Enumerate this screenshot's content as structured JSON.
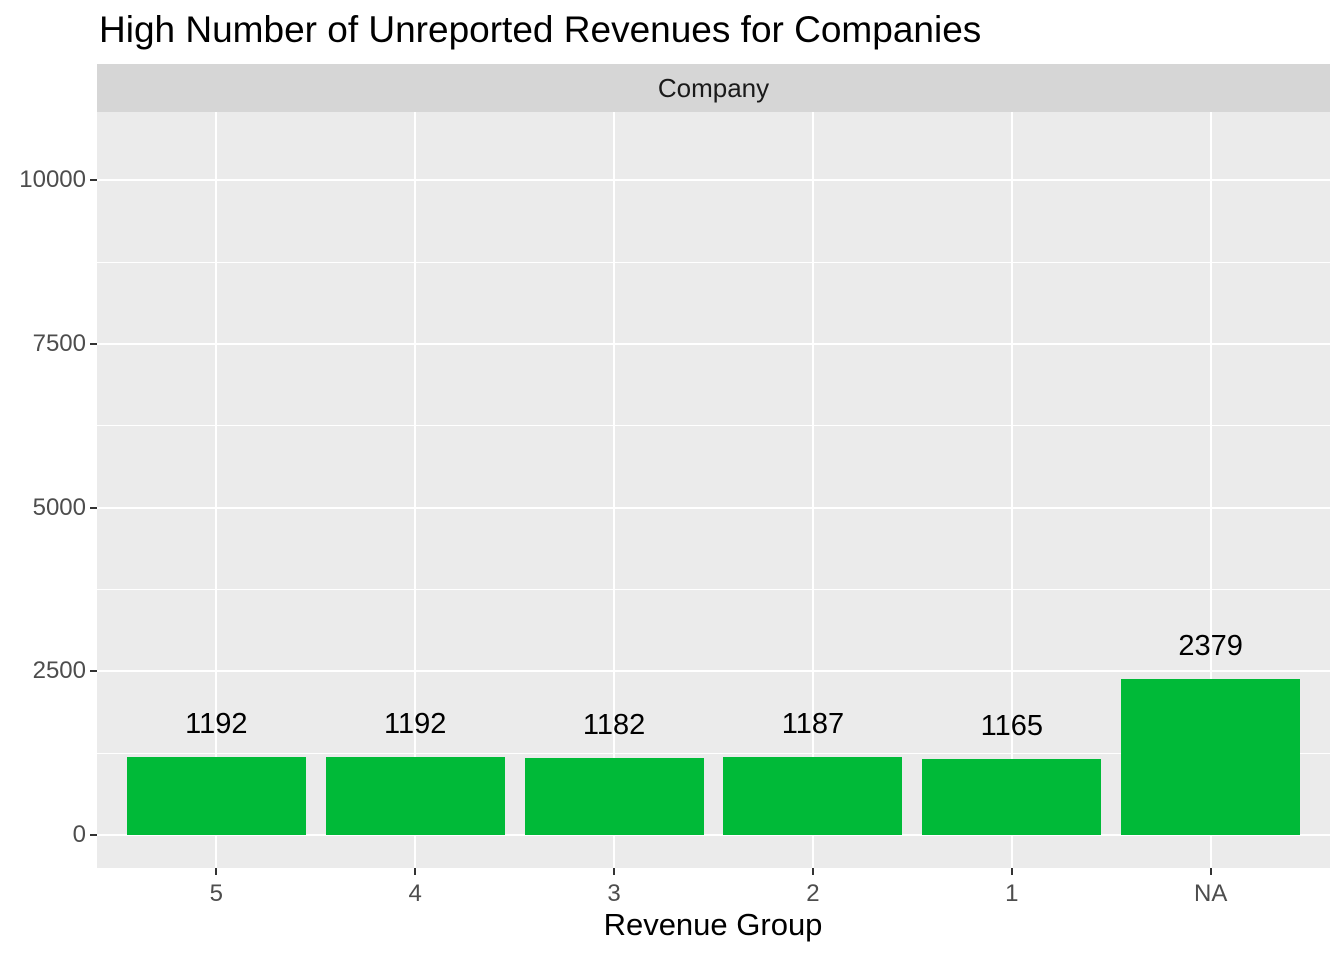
{
  "title": "High Number of Unreported Revenues for Companies",
  "facet": {
    "label": "Company"
  },
  "axes": {
    "x_title": "Revenue Group"
  },
  "chart_data": {
    "type": "bar",
    "title": "High Number of Unreported Revenues for Companies",
    "facet_label": "Company",
    "categories": [
      "5",
      "4",
      "3",
      "2",
      "1",
      "NA"
    ],
    "values": [
      1192,
      1192,
      1182,
      1187,
      1165,
      2379
    ],
    "bar_labels": [
      "1192",
      "1192",
      "1182",
      "1187",
      "1165",
      "2379"
    ],
    "xlabel": "Revenue Group",
    "ylabel": "",
    "ylim": [
      0,
      11000
    ],
    "y_major_ticks": [
      0,
      2500,
      5000,
      7500,
      10000
    ],
    "y_minor_ticks": [
      1250,
      3750,
      6250,
      8750
    ],
    "grid": "on",
    "legend_position": "none"
  },
  "colors": {
    "bar": "#00ba38",
    "panel_background": "#ebebeb",
    "strip_background": "#d6d6d6",
    "gridline": "#ffffff",
    "axis_text": "#4d4d4d",
    "strip_text": "#1a1a1a",
    "tick_mark": "#333333",
    "title_text": "#000000"
  }
}
